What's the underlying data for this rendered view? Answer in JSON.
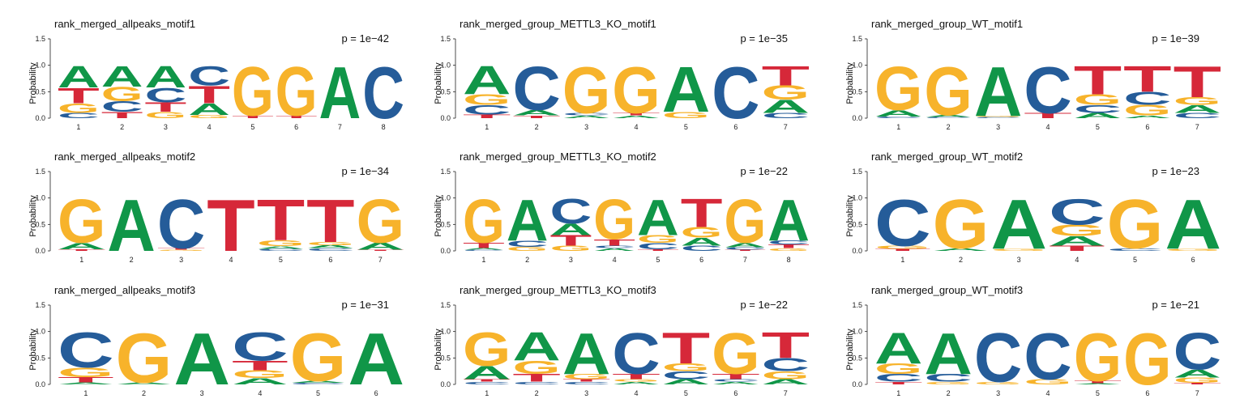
{
  "colors": {
    "A": "#109648",
    "C": "#255C99",
    "G": "#F7B32B",
    "T": "#D62839",
    "axis": "#222222"
  },
  "chart_data": [
    {
      "type": "sequence-logo",
      "title": "rank_merged_allpeaks_motif1",
      "pvalue": "p = 1e−42",
      "ylabel": "Probability",
      "ylim": [
        0,
        1.5
      ],
      "yticks": [
        "0.0",
        "0.5",
        "1.0",
        "1.5"
      ],
      "positions": [
        "1",
        "2",
        "3",
        "4",
        "5",
        "6",
        "7",
        "8"
      ],
      "matrix": [
        {
          "A": 0.42,
          "C": 0.1,
          "G": 0.18,
          "T": 0.3
        },
        {
          "A": 0.4,
          "C": 0.2,
          "G": 0.28,
          "T": 0.12
        },
        {
          "A": 0.42,
          "C": 0.28,
          "G": 0.12,
          "T": 0.18
        },
        {
          "A": 0.22,
          "C": 0.38,
          "G": 0.06,
          "T": 0.34
        },
        {
          "A": 0.0,
          "C": 0.0,
          "G": 0.95,
          "T": 0.05
        },
        {
          "A": 0.0,
          "C": 0.0,
          "G": 0.95,
          "T": 0.05
        },
        {
          "A": 1.0,
          "C": 0.0,
          "G": 0.0,
          "T": 0.0
        },
        {
          "A": 0.0,
          "C": 1.0,
          "G": 0.0,
          "T": 0.0
        }
      ]
    },
    {
      "type": "sequence-logo",
      "title": "rank_merged_group_METTL3_KO_motif1",
      "pvalue": "p = 1e−35",
      "ylabel": "Probability",
      "ylim": [
        0,
        1.5
      ],
      "yticks": [
        "0.0",
        "0.5",
        "1.0",
        "1.5"
      ],
      "positions": [
        "1",
        "2",
        "3",
        "4",
        "5",
        "6",
        "7"
      ],
      "matrix": [
        {
          "A": 0.55,
          "C": 0.18,
          "G": 0.2,
          "T": 0.07
        },
        {
          "A": 0.1,
          "C": 0.85,
          "G": 0.0,
          "T": 0.05
        },
        {
          "A": 0.05,
          "C": 0.05,
          "G": 0.9,
          "T": 0.0
        },
        {
          "A": 0.05,
          "C": 0.0,
          "G": 0.9,
          "T": 0.05
        },
        {
          "A": 0.88,
          "C": 0.0,
          "G": 0.12,
          "T": 0.0
        },
        {
          "A": 0.0,
          "C": 1.0,
          "G": 0.0,
          "T": 0.0
        },
        {
          "A": 0.25,
          "C": 0.1,
          "G": 0.27,
          "T": 0.38
        }
      ]
    },
    {
      "type": "sequence-logo",
      "title": "rank_merged_group_WT_motif1",
      "pvalue": "p = 1e−39",
      "ylabel": "Probability",
      "ylim": [
        0,
        1.5
      ],
      "yticks": [
        "0.0",
        "0.5",
        "1.0",
        "1.5"
      ],
      "positions": [
        "1",
        "2",
        "3",
        "4",
        "5",
        "6",
        "7"
      ],
      "matrix": [
        {
          "A": 0.12,
          "C": 0.03,
          "G": 0.85,
          "T": 0.0
        },
        {
          "A": 0.04,
          "C": 0.02,
          "G": 0.94,
          "T": 0.0
        },
        {
          "A": 0.96,
          "C": 0.02,
          "G": 0.02,
          "T": 0.0
        },
        {
          "A": 0.0,
          "C": 0.9,
          "G": 0.0,
          "T": 0.1
        },
        {
          "A": 0.1,
          "C": 0.15,
          "G": 0.2,
          "T": 0.55
        },
        {
          "A": 0.05,
          "C": 0.25,
          "G": 0.2,
          "T": 0.5
        },
        {
          "A": 0.15,
          "C": 0.1,
          "G": 0.15,
          "T": 0.6
        }
      ]
    },
    {
      "type": "sequence-logo",
      "title": "rank_merged_allpeaks_motif2",
      "pvalue": "p = 1e−34",
      "ylabel": "Probability",
      "ylim": [
        0,
        1.5
      ],
      "yticks": [
        "0.0",
        "0.5",
        "1.0",
        "1.5"
      ],
      "positions": [
        "1",
        "2",
        "3",
        "4",
        "5",
        "6",
        "7"
      ],
      "matrix": [
        {
          "A": 0.12,
          "C": 0.0,
          "G": 0.85,
          "T": 0.03
        },
        {
          "A": 1.0,
          "C": 0.0,
          "G": 0.0,
          "T": 0.0
        },
        {
          "A": 0.0,
          "C": 0.95,
          "G": 0.02,
          "T": 0.03
        },
        {
          "A": 0.0,
          "C": 0.0,
          "G": 0.0,
          "T": 1.0
        },
        {
          "A": 0.05,
          "C": 0.04,
          "G": 0.11,
          "T": 0.8
        },
        {
          "A": 0.06,
          "C": 0.05,
          "G": 0.06,
          "T": 0.83
        },
        {
          "A": 0.13,
          "C": 0.0,
          "G": 0.85,
          "T": 0.02
        }
      ]
    },
    {
      "type": "sequence-logo",
      "title": "rank_merged_group_METTL3_KO_motif2",
      "pvalue": "p = 1e−22",
      "ylabel": "Probability",
      "ylim": [
        0,
        1.5
      ],
      "yticks": [
        "0.0",
        "0.5",
        "1.0",
        "1.5"
      ],
      "positions": [
        "1",
        "2",
        "3",
        "4",
        "5",
        "6",
        "7",
        "8"
      ],
      "matrix": [
        {
          "A": 0.03,
          "C": 0.02,
          "G": 0.85,
          "T": 0.1
        },
        {
          "A": 0.8,
          "C": 0.12,
          "G": 0.08,
          "T": 0.0
        },
        {
          "A": 0.22,
          "C": 0.48,
          "G": 0.1,
          "T": 0.2
        },
        {
          "A": 0.05,
          "C": 0.05,
          "G": 0.78,
          "T": 0.12
        },
        {
          "A": 0.7,
          "C": 0.12,
          "G": 0.15,
          "T": 0.03
        },
        {
          "A": 0.15,
          "C": 0.1,
          "G": 0.2,
          "T": 0.55
        },
        {
          "A": 0.08,
          "C": 0.05,
          "G": 0.85,
          "T": 0.02
        },
        {
          "A": 0.8,
          "C": 0.08,
          "G": 0.05,
          "T": 0.07
        }
      ]
    },
    {
      "type": "sequence-logo",
      "title": "rank_merged_group_WT_motif2",
      "pvalue": "p = 1e−23",
      "ylabel": "Probability",
      "ylim": [
        0,
        1.5
      ],
      "yticks": [
        "0.0",
        "0.5",
        "1.0",
        "1.5"
      ],
      "positions": [
        "1",
        "2",
        "3",
        "4",
        "5",
        "6"
      ],
      "matrix": [
        {
          "A": 0.0,
          "C": 0.9,
          "G": 0.06,
          "T": 0.04
        },
        {
          "A": 0.05,
          "C": 0.0,
          "G": 0.95,
          "T": 0.0
        },
        {
          "A": 0.96,
          "C": 0.0,
          "G": 0.04,
          "T": 0.0
        },
        {
          "A": 0.18,
          "C": 0.5,
          "G": 0.22,
          "T": 0.1
        },
        {
          "A": 0.0,
          "C": 0.05,
          "G": 0.95,
          "T": 0.0
        },
        {
          "A": 0.96,
          "C": 0.0,
          "G": 0.04,
          "T": 0.0
        }
      ]
    },
    {
      "type": "sequence-logo",
      "title": "rank_merged_allpeaks_motif3",
      "pvalue": "p = 1e−31",
      "ylabel": "Probability",
      "ylim": [
        0,
        1.5
      ],
      "yticks": [
        "0.0",
        "0.5",
        "1.0",
        "1.5"
      ],
      "positions": [
        "1",
        "2",
        "3",
        "4",
        "5",
        "6"
      ],
      "matrix": [
        {
          "A": 0.04,
          "C": 0.68,
          "G": 0.18,
          "T": 0.1
        },
        {
          "A": 0.04,
          "C": 0.0,
          "G": 0.96,
          "T": 0.0
        },
        {
          "A": 1.0,
          "C": 0.0,
          "G": 0.0,
          "T": 0.0
        },
        {
          "A": 0.12,
          "C": 0.55,
          "G": 0.15,
          "T": 0.18
        },
        {
          "A": 0.04,
          "C": 0.03,
          "G": 0.93,
          "T": 0.0
        },
        {
          "A": 1.0,
          "C": 0.0,
          "G": 0.0,
          "T": 0.0
        }
      ]
    },
    {
      "type": "sequence-logo",
      "title": "rank_merged_group_METTL3_KO_motif3",
      "pvalue": "p = 1e−22",
      "ylabel": "Probability",
      "ylim": [
        0,
        1.5
      ],
      "yticks": [
        "0.0",
        "0.5",
        "1.0",
        "1.5"
      ],
      "positions": [
        "1",
        "2",
        "3",
        "4",
        "5",
        "6",
        "7"
      ],
      "matrix": [
        {
          "A": 0.25,
          "C": 0.05,
          "G": 0.65,
          "T": 0.05
        },
        {
          "A": 0.55,
          "C": 0.05,
          "G": 0.25,
          "T": 0.15
        },
        {
          "A": 0.8,
          "C": 0.05,
          "G": 0.1,
          "T": 0.05
        },
        {
          "A": 0.05,
          "C": 0.8,
          "G": 0.05,
          "T": 0.1
        },
        {
          "A": 0.1,
          "C": 0.15,
          "G": 0.15,
          "T": 0.6
        },
        {
          "A": 0.05,
          "C": 0.05,
          "G": 0.8,
          "T": 0.1
        },
        {
          "A": 0.1,
          "C": 0.25,
          "G": 0.15,
          "T": 0.5
        }
      ]
    },
    {
      "type": "sequence-logo",
      "title": "rank_merged_group_WT_motif3",
      "pvalue": "p = 1e−21",
      "ylabel": "Probability",
      "ylim": [
        0,
        1.5
      ],
      "yticks": [
        "0.0",
        "0.5",
        "1.0",
        "1.5"
      ],
      "positions": [
        "1",
        "2",
        "3",
        "4",
        "5",
        "6",
        "7"
      ],
      "matrix": [
        {
          "A": 0.6,
          "C": 0.15,
          "G": 0.2,
          "T": 0.05
        },
        {
          "A": 0.8,
          "C": 0.15,
          "G": 0.05,
          "T": 0.0
        },
        {
          "A": 0.0,
          "C": 0.95,
          "G": 0.05,
          "T": 0.0
        },
        {
          "A": 0.0,
          "C": 0.9,
          "G": 0.1,
          "T": 0.0
        },
        {
          "A": 0.02,
          "C": 0.0,
          "G": 0.93,
          "T": 0.05
        },
        {
          "A": 0.0,
          "C": 0.0,
          "G": 1.0,
          "T": 0.0
        },
        {
          "A": 0.15,
          "C": 0.72,
          "G": 0.1,
          "T": 0.03
        }
      ]
    }
  ]
}
